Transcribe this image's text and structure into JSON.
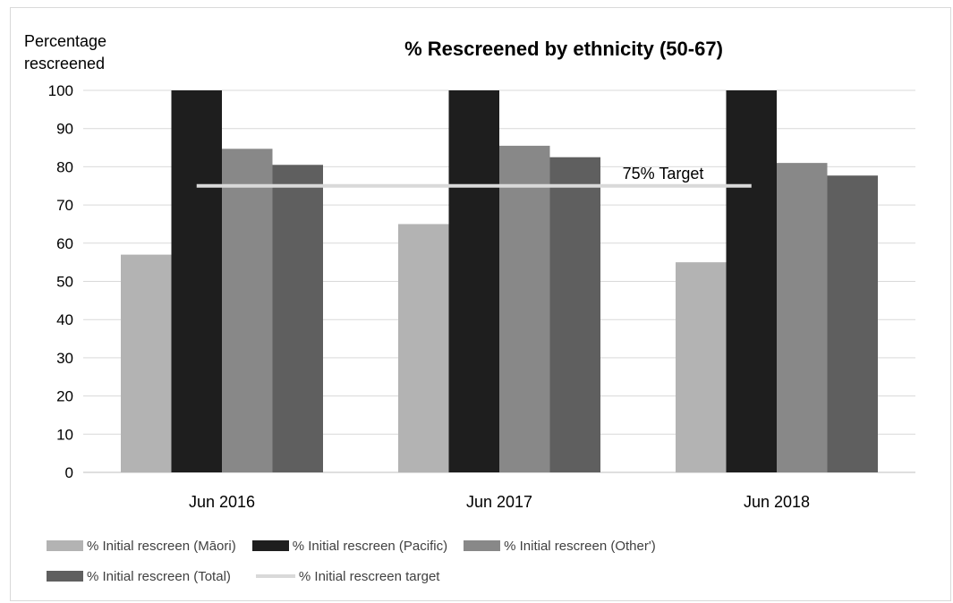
{
  "chart_data": {
    "type": "bar",
    "title": "% Rescreened by ethnicity (50-67)",
    "ylabel_lines": [
      "Percentage",
      "rescreened"
    ],
    "xlabel": "",
    "categories": [
      "Jun 2016",
      "Jun 2017",
      "Jun 2018"
    ],
    "ylim": [
      0,
      100
    ],
    "yticks": [
      0,
      10,
      20,
      30,
      40,
      50,
      60,
      70,
      80,
      90,
      100
    ],
    "grid": true,
    "legend_position": "bottom",
    "series": [
      {
        "name": "% Initial rescreen (Māori)",
        "values": [
          57,
          65,
          55
        ],
        "color": "#b3b3b3"
      },
      {
        "name": "% Initial rescreen (Pacific)",
        "values": [
          100,
          100,
          100
        ],
        "color": "#1e1e1e"
      },
      {
        "name": "% Initial rescreen (Other')",
        "values": [
          84.7,
          85.5,
          81
        ],
        "color": "#888888"
      },
      {
        "name": "% Initial rescreen (Total)",
        "values": [
          80.5,
          82.5,
          77.7
        ],
        "color": "#5f5f5f"
      }
    ],
    "target": {
      "name": "% Initial rescreen target",
      "value": 75,
      "label": "75% Target",
      "color": "#d9d9d9"
    }
  }
}
